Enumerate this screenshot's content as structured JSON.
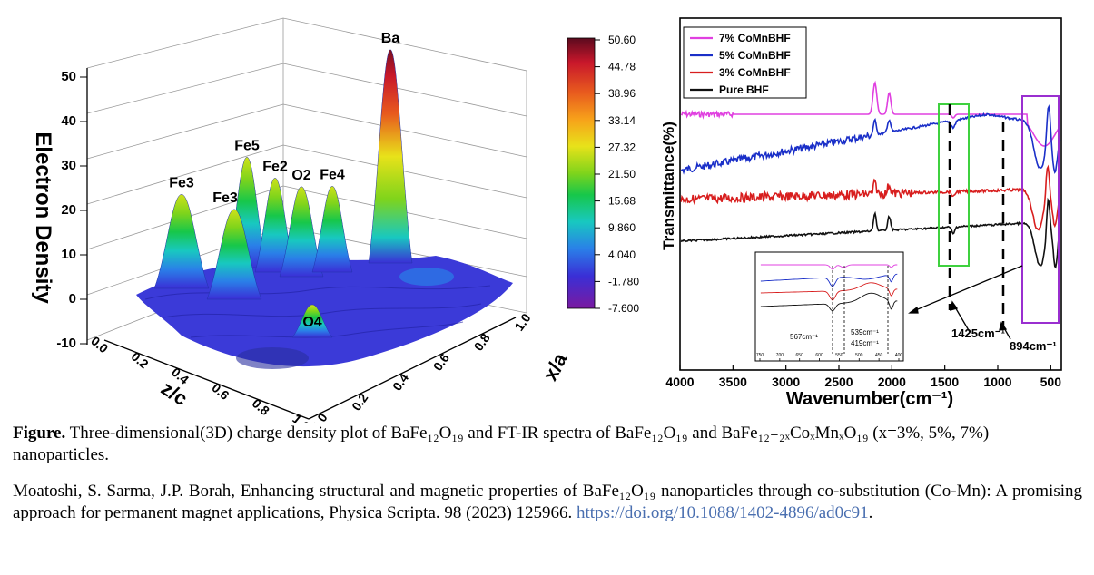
{
  "figure": {
    "caption_label": "Figure.",
    "caption_text": " Three-dimensional(3D) charge density plot of BaFe₁₂O₁₉ and FT-IR spectra of BaFe₁₂O₁₉ and BaFe₁₂₋₂ₓCoₓMnₓO₁₉ (x=3%, 5%, 7%) nanoparticles.",
    "reference": "Moatoshi, S. Sarma, J.P. Borah, Enhancing structural and magnetic properties of BaFe₁₂O₁₉ nanoparticles through co-substitution (Co-Mn): A promising approach for permanent magnet applications, Physica Scripta. 98 (2023) 125966. ",
    "doi": "https://doi.org/10.1088/1402-4896/ad0c91",
    "doi_suffix": "."
  },
  "chart_data": [
    {
      "type": "surface3d",
      "zlabel": "Electron Density",
      "xlabel": "z/c",
      "ylabel": "x/a",
      "zlim": [
        -10,
        50
      ],
      "z_ticks": [
        "50",
        "40",
        "30",
        "20",
        "10",
        "0",
        "-10"
      ],
      "x_ticks": [
        "0.0",
        "0.2",
        "0.4",
        "0.6",
        "0.8",
        "1.0"
      ],
      "y_ticks": [
        "0.0",
        "0.2",
        "0.4",
        "0.6",
        "0.8",
        "1.0"
      ],
      "peaks": [
        {
          "label": "Ba",
          "value": 50
        },
        {
          "label": "Fe3",
          "value": 23
        },
        {
          "label": "Fe3",
          "value": 22
        },
        {
          "label": "Fe5",
          "value": 27
        },
        {
          "label": "Fe2",
          "value": 23
        },
        {
          "label": "O2",
          "value": 22
        },
        {
          "label": "Fe4",
          "value": 21
        },
        {
          "label": "O4",
          "value": 8
        }
      ],
      "colorbar": {
        "ticks": [
          "50.60",
          "44.78",
          "38.96",
          "33.14",
          "27.32",
          "21.50",
          "15.68",
          "9.860",
          "4.040",
          "-1.780",
          "-7.600"
        ],
        "colors": [
          "#5c0a1e",
          "#c8172b",
          "#e85a1e",
          "#f7a11a",
          "#e8e21a",
          "#7fd41b",
          "#17c74a",
          "#18c8c0",
          "#2a7fe8",
          "#3a2fd6",
          "#6a1fb0",
          "#7a1aa0"
        ]
      }
    },
    {
      "type": "line",
      "xlabel": "Wavenumber(cm⁻¹)",
      "ylabel": "Transmittance(%)",
      "xlim": [
        4000,
        400
      ],
      "x_ticks": [
        "4000",
        "3500",
        "3000",
        "2500",
        "2000",
        "1500",
        "1000",
        "500"
      ],
      "series": [
        {
          "name": "7% CoMnBHF",
          "color": "#e040e0"
        },
        {
          "name": "5% CoMnBHF",
          "color": "#1a2fc8"
        },
        {
          "name": "3% CoMnBHF",
          "color": "#d81e1e"
        },
        {
          "name": "Pure BHF",
          "color": "#111111"
        }
      ],
      "annotations": [
        "1425cm⁻¹",
        "894cm⁻¹"
      ],
      "inset": {
        "x_ticks": [
          "750",
          "700",
          "650",
          "600",
          "550",
          "500",
          "450",
          "400"
        ],
        "annotations": [
          "567cm⁻¹",
          "539cm⁻¹",
          "419cm⁻¹"
        ]
      }
    }
  ]
}
